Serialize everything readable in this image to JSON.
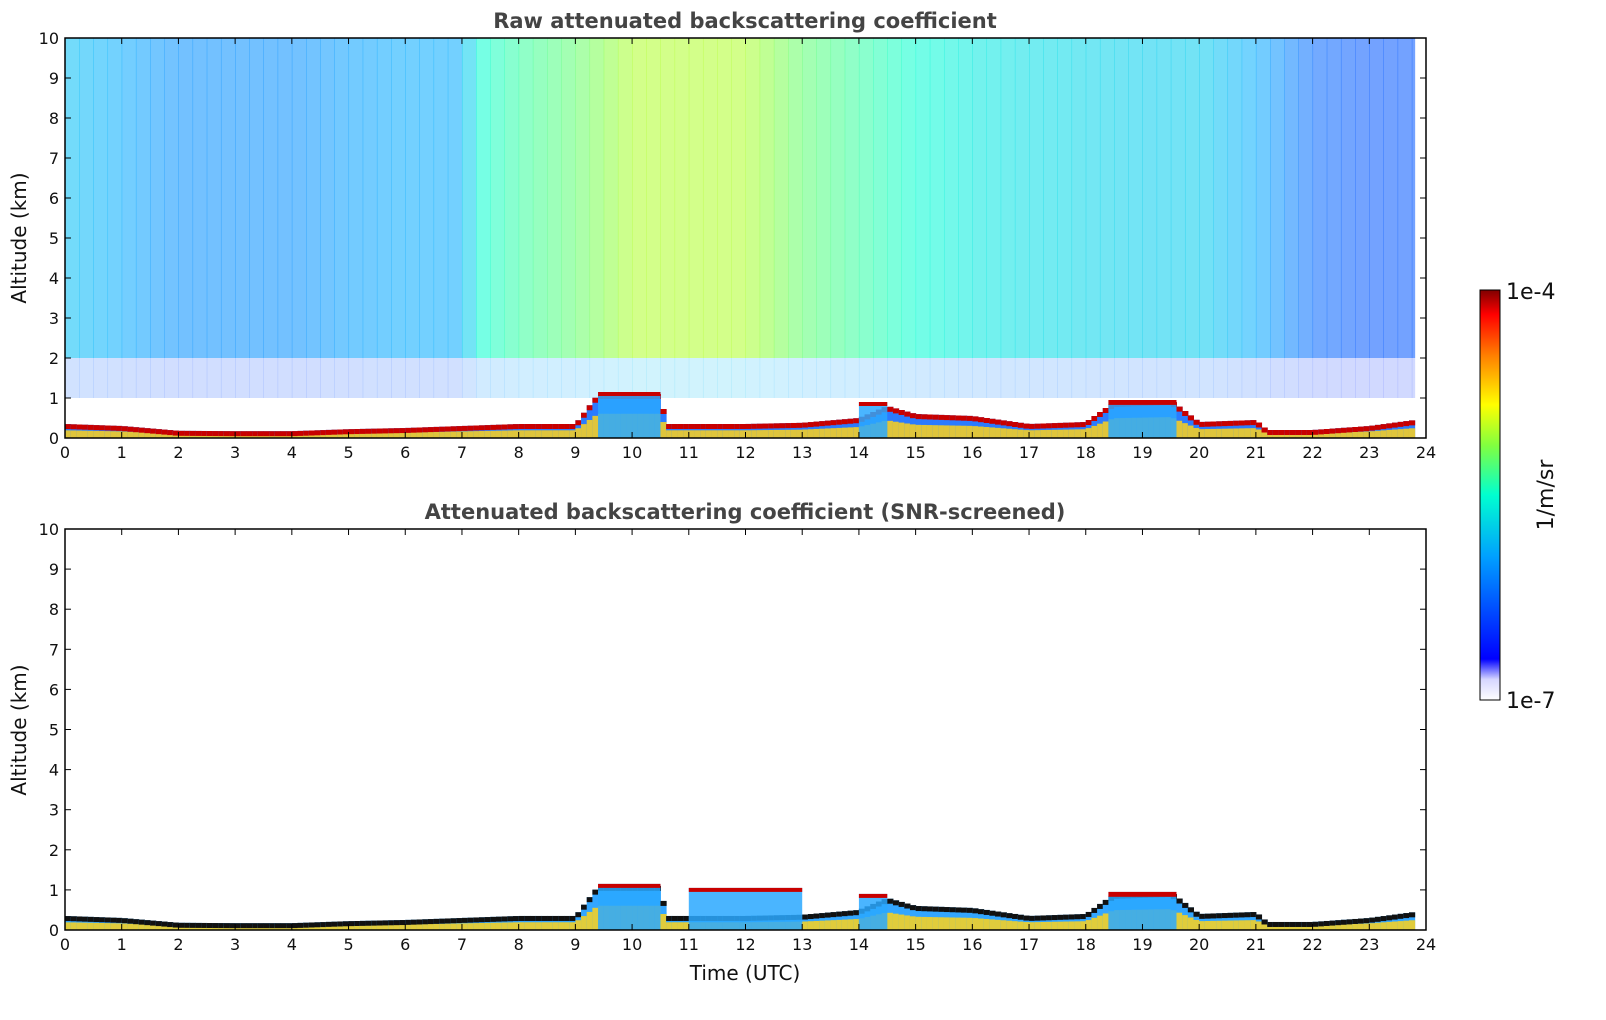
{
  "chart_data": [
    {
      "type": "heatmap",
      "title": "Raw attenuated backscattering coefficient",
      "xlabel": "",
      "ylabel": "Altitude (km)",
      "xlim": [
        0,
        24
      ],
      "ylim": [
        0,
        10
      ],
      "xticks": [
        0,
        1,
        2,
        3,
        4,
        5,
        6,
        7,
        8,
        9,
        10,
        11,
        12,
        13,
        14,
        15,
        16,
        17,
        18,
        19,
        20,
        21,
        22,
        23,
        24
      ],
      "yticks": [
        0,
        1,
        2,
        3,
        4,
        5,
        6,
        7,
        8,
        9,
        10
      ],
      "data_end_time": 23.8,
      "aerosol_layer_top_km": [
        [
          0,
          0.35
        ],
        [
          1,
          0.3
        ],
        [
          2,
          0.18
        ],
        [
          3,
          0.17
        ],
        [
          4,
          0.17
        ],
        [
          5,
          0.22
        ],
        [
          6,
          0.25
        ],
        [
          7,
          0.3
        ],
        [
          8,
          0.35
        ],
        [
          9,
          0.35
        ],
        [
          9.4,
          1.1
        ],
        [
          10.5,
          1.1
        ],
        [
          10.6,
          0.35
        ],
        [
          12,
          0.35
        ],
        [
          13,
          0.38
        ],
        [
          14,
          0.5
        ],
        [
          14.5,
          0.8
        ],
        [
          15,
          0.6
        ],
        [
          16,
          0.55
        ],
        [
          17,
          0.35
        ],
        [
          18,
          0.4
        ],
        [
          18.5,
          0.9
        ],
        [
          19.5,
          0.95
        ],
        [
          20,
          0.4
        ],
        [
          21,
          0.45
        ],
        [
          21.2,
          0.2
        ],
        [
          22,
          0.2
        ],
        [
          23,
          0.3
        ],
        [
          23.8,
          0.45
        ]
      ],
      "cloud_features": [
        {
          "x": [
            9.4,
            10.5
          ],
          "y": [
            0.9,
            1.15
          ]
        },
        {
          "x": [
            14.0,
            14.5
          ],
          "y": [
            0.75,
            0.9
          ]
        },
        {
          "x": [
            18.4,
            19.6
          ],
          "y": [
            0.6,
            0.95
          ]
        }
      ],
      "background_signal": [
        [
          0,
          0.35
        ],
        [
          1,
          0.3
        ],
        [
          2,
          0.25
        ],
        [
          3,
          0.25
        ],
        [
          4,
          0.25
        ],
        [
          5,
          0.28
        ],
        [
          6,
          0.3
        ],
        [
          7,
          0.3
        ],
        [
          7.3,
          0.5
        ],
        [
          8,
          0.55
        ],
        [
          9,
          0.6
        ],
        [
          10,
          0.68
        ],
        [
          11,
          0.68
        ],
        [
          12,
          0.68
        ],
        [
          13,
          0.6
        ],
        [
          14,
          0.55
        ],
        [
          15,
          0.5
        ],
        [
          16,
          0.45
        ],
        [
          17,
          0.42
        ],
        [
          18,
          0.4
        ],
        [
          19,
          0.38
        ],
        [
          20,
          0.38
        ],
        [
          21,
          0.3
        ],
        [
          22,
          0.18
        ],
        [
          23,
          0.15
        ],
        [
          23.8,
          0.15
        ]
      ]
    },
    {
      "type": "heatmap",
      "title": "Attenuated backscattering coefficient (SNR-screened)",
      "xlabel": "Time (UTC)",
      "ylabel": "Altitude (km)",
      "xlim": [
        0,
        24
      ],
      "ylim": [
        0,
        10
      ],
      "xticks": [
        0,
        1,
        2,
        3,
        4,
        5,
        6,
        7,
        8,
        9,
        10,
        11,
        12,
        13,
        14,
        15,
        16,
        17,
        18,
        19,
        20,
        21,
        22,
        23,
        24
      ],
      "yticks": [
        0,
        1,
        2,
        3,
        4,
        5,
        6,
        7,
        8,
        9,
        10
      ],
      "data_end_time": 23.8,
      "aerosol_layer_top_km": [
        [
          0,
          0.35
        ],
        [
          1,
          0.3
        ],
        [
          2,
          0.18
        ],
        [
          3,
          0.17
        ],
        [
          4,
          0.17
        ],
        [
          5,
          0.22
        ],
        [
          6,
          0.25
        ],
        [
          7,
          0.3
        ],
        [
          8,
          0.35
        ],
        [
          9,
          0.35
        ],
        [
          9.4,
          1.1
        ],
        [
          10.5,
          1.1
        ],
        [
          10.6,
          0.35
        ],
        [
          12,
          0.35
        ],
        [
          13,
          0.38
        ],
        [
          14,
          0.5
        ],
        [
          14.5,
          0.8
        ],
        [
          15,
          0.6
        ],
        [
          16,
          0.55
        ],
        [
          17,
          0.35
        ],
        [
          18,
          0.4
        ],
        [
          18.5,
          0.9
        ],
        [
          19.5,
          0.95
        ],
        [
          20,
          0.4
        ],
        [
          21,
          0.45
        ],
        [
          21.2,
          0.2
        ],
        [
          22,
          0.2
        ],
        [
          23,
          0.3
        ],
        [
          23.8,
          0.45
        ]
      ],
      "cloud_features": [
        {
          "x": [
            9.4,
            10.5
          ],
          "y": [
            0.9,
            1.15
          ]
        },
        {
          "x": [
            11.0,
            13.0
          ],
          "y": [
            0.95,
            1.05
          ]
        },
        {
          "x": [
            14.0,
            14.5
          ],
          "y": [
            0.75,
            0.9
          ]
        },
        {
          "x": [
            18.4,
            19.6
          ],
          "y": [
            0.6,
            0.95
          ]
        }
      ]
    }
  ],
  "colorbar": {
    "label": "1/m/sr",
    "max_label": "1e-4",
    "min_label": "1e-7",
    "scale": "log",
    "range": [
      1e-07,
      0.0001
    ],
    "colormap": [
      "#ffffff",
      "#0000ff",
      "#00a0ff",
      "#00ffd0",
      "#80ff40",
      "#ffff00",
      "#ff8000",
      "#ff0000",
      "#800000"
    ]
  }
}
